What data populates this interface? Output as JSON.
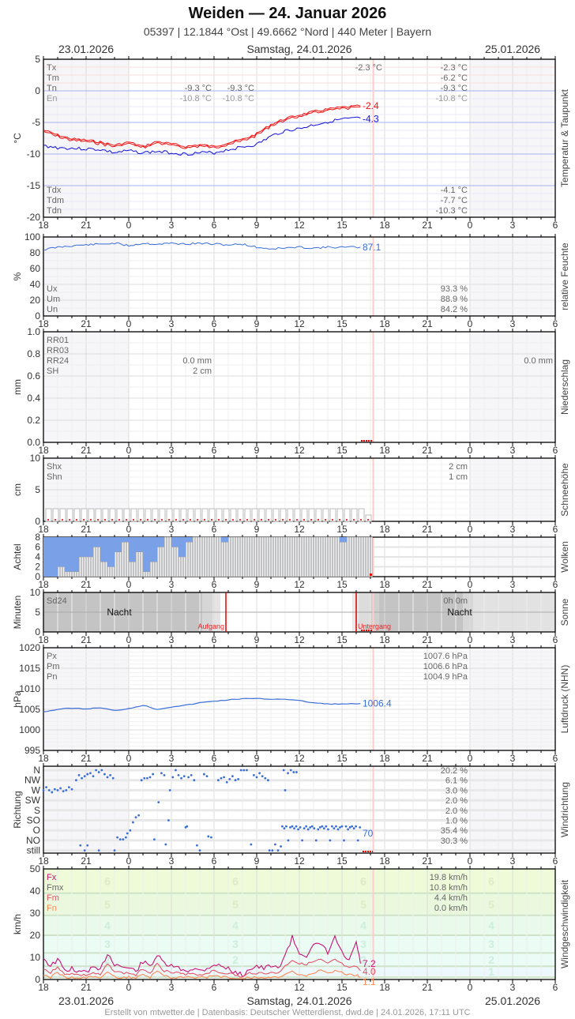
{
  "header": {
    "title": "Weiden  —  24. Januar 2026",
    "subtitle": "05397  |  12.1844 °Ost  |  49.6662 °Nord  |  440 Meter  |  Bayern",
    "date_left": "23.01.2026",
    "date_center": "Samstag, 24.01.2026",
    "date_right": "25.01.2026"
  },
  "footer": {
    "text": "Erstellt von mtwetter.de | Datenbasis: Deutscher Wetterdienst, dwd.de | 24.01.2026, 17:11 UTC"
  },
  "x_ticks": [
    "18",
    "21",
    "0",
    "3",
    "6",
    "9",
    "12",
    "15",
    "18",
    "21",
    "0",
    "3",
    "6"
  ],
  "colors": {
    "temp": "#ee1111",
    "dewpoint": "#1111dd",
    "humidity": "#3b6fd8",
    "pressure": "#3b6fd8",
    "cloud_fill": "#7aa0e8",
    "now_line": "#ffcccc",
    "fx": "#cc1177",
    "fm": "#e65566",
    "fn": "#ff8855"
  },
  "chart_data": [
    {
      "type": "line",
      "title": "Temperatur & Taupunkt",
      "ylabel": "°C",
      "ylim": [
        -20,
        5
      ],
      "yticks": [
        "5",
        "0",
        "-5",
        "-10",
        "-15",
        "-20"
      ],
      "legend_top": [
        {
          "key": "Tx",
          "day1": "",
          "day2": "-2.3 °C",
          "day3": "-2.3 °C"
        },
        {
          "key": "Tm",
          "day1": "",
          "day2": "",
          "day3": "-6.2 °C"
        },
        {
          "key": "Tn",
          "day1": "-9.3 °C",
          "day2": "-9.3 °C",
          "day3": "-9.3 °C"
        },
        {
          "key": "En",
          "day1": "-10.8 °C",
          "day2": "-10.8 °C",
          "day3": "-10.8 °C"
        }
      ],
      "legend_top_values": {
        "tx_mid": "-2.3 °C",
        "tn_a": "-9.3 °C",
        "tn_b": "-9.3 °C",
        "en_a": "-10.8 °C",
        "en_b": "-10.8 °C",
        "r_tx": "-2.3 °C",
        "r_tm": "-6.2 °C",
        "r_tn": "-9.3 °C",
        "r_en": "-10.8 °C"
      },
      "legend_bottom": {
        "tdx": "-4.1 °C",
        "tdm": "-7.7 °C",
        "tdn": "-10.3 °C"
      },
      "labels": {
        "tx": "Tx",
        "tm": "Tm",
        "tn": "Tn",
        "en": "En",
        "tdx": "Tdx",
        "tdm": "Tdm",
        "tdn": "Tdn"
      },
      "series": [
        {
          "name": "Temperatur",
          "last": "-2.4",
          "x": [
            18,
            19,
            20,
            21,
            22,
            23,
            0,
            1,
            2,
            3,
            4,
            5,
            6,
            7,
            8,
            9,
            10,
            11,
            12,
            13,
            14,
            15,
            16.3
          ],
          "values": [
            -6.2,
            -7.0,
            -7.6,
            -7.8,
            -8.1,
            -8.6,
            -8.1,
            -8.8,
            -8.0,
            -8.4,
            -8.8,
            -8.5,
            -8.8,
            -8.2,
            -7.7,
            -6.8,
            -5.3,
            -4.4,
            -3.8,
            -3.3,
            -2.9,
            -2.6,
            -2.4
          ]
        },
        {
          "name": "Taupunkt",
          "last": "-4.3",
          "x": [
            18,
            19,
            20,
            21,
            22,
            23,
            0,
            1,
            2,
            3,
            4,
            5,
            6,
            7,
            8,
            9,
            10,
            11,
            12,
            13,
            14,
            15,
            16.3
          ],
          "values": [
            -8.7,
            -9.0,
            -9.1,
            -9.2,
            -9.3,
            -9.8,
            -9.5,
            -9.8,
            -9.6,
            -9.8,
            -10.0,
            -9.8,
            -9.8,
            -9.3,
            -8.9,
            -8.5,
            -7.2,
            -6.3,
            -6.0,
            -5.4,
            -4.9,
            -4.5,
            -4.3
          ]
        }
      ]
    },
    {
      "type": "line",
      "title": "relative Feuchte",
      "ylabel": "%",
      "ylim": [
        0,
        100
      ],
      "yticks": [
        "100",
        "80",
        "60",
        "40",
        "20",
        "0"
      ],
      "legend": {
        "ux": "93.3 %",
        "um": "88.9 %",
        "un": "84.2 %"
      },
      "labels": {
        "ux": "Ux",
        "um": "Um",
        "un": "Un"
      },
      "series": [
        {
          "name": "rel. Feuchte",
          "last": "87.1",
          "x": [
            18,
            19,
            20,
            21,
            22,
            23,
            0,
            1,
            2,
            3,
            4,
            5,
            6,
            7,
            8,
            9,
            10,
            11,
            12,
            13,
            14,
            15,
            16.3
          ],
          "values": [
            84,
            87,
            89,
            90,
            91,
            92,
            89,
            92,
            91,
            92,
            91,
            92,
            91,
            90,
            91,
            87,
            85,
            86,
            87,
            86,
            87,
            87,
            87.1
          ]
        }
      ]
    },
    {
      "type": "bar",
      "title": "Niederschlag",
      "ylabel": "mm",
      "ylim": [
        0,
        1.0
      ],
      "yticks": [
        "1.0",
        "0.8",
        "0.6",
        "0.4",
        "0.2",
        "0.0"
      ],
      "labels": {
        "rr01": "RR01",
        "rr03": "RR03",
        "rr24": "RR24",
        "sh": "SH"
      },
      "legend": {
        "rr24_day2": "0.0 mm",
        "sh_day2": "2 cm",
        "rr24_day3": "0.0 mm"
      },
      "values": []
    },
    {
      "type": "bar",
      "title": "Schneehöhe",
      "ylabel": "cm",
      "ylim": [
        0,
        10
      ],
      "yticks": [
        "10",
        "5",
        "0"
      ],
      "labels": {
        "shx": "Shx",
        "shn": "Shn"
      },
      "legend": {
        "shx": "2 cm",
        "shn": "1 cm"
      },
      "values_note": "2 cm hourly until ~16:30, then 1 cm"
    },
    {
      "type": "bar",
      "title": "Wolken",
      "ylabel": "Achtel",
      "ylim": [
        0,
        8
      ],
      "yticks": [
        "8",
        "6",
        "4",
        "2",
        "0"
      ],
      "x": [
        18,
        18.5,
        19,
        19.5,
        20,
        20.5,
        21,
        21.5,
        22,
        22.5,
        23,
        23.5,
        0,
        0.5,
        1,
        1.5,
        2,
        2.5,
        3,
        3.5,
        4,
        4.5,
        5,
        5.5,
        6,
        6.5,
        7,
        7.5,
        8
      ],
      "values": [
        0,
        0,
        2,
        1,
        1,
        4,
        4,
        6,
        3,
        2,
        5,
        7,
        3,
        5,
        1,
        3,
        6,
        8,
        6,
        4,
        7,
        8,
        8,
        8,
        8,
        7,
        8,
        8,
        8
      ]
    },
    {
      "type": "bar",
      "title": "Sonne",
      "ylabel": "Minuten",
      "ylim": [
        0,
        10
      ],
      "yticks": [
        "10",
        "5",
        "0"
      ],
      "labels": {
        "sd24": "Sd24",
        "night": "Nacht",
        "sunrise": "Aufgang",
        "sunset": "Untergang"
      },
      "legend": {
        "sd24": "0h 0m"
      },
      "sunrise_hour": 7.3,
      "sunset_hour": 16.6
    },
    {
      "type": "line",
      "title": "Luftdruck (NHN)",
      "ylabel": "hPa",
      "ylim": [
        995,
        1020
      ],
      "yticks": [
        "1020",
        "1015",
        "1010",
        "1005",
        "1000",
        "995"
      ],
      "labels": {
        "px": "Px",
        "pm": "Pm",
        "pn": "Pn"
      },
      "legend": {
        "px": "1007.6 hPa",
        "pm": "1006.6 hPa",
        "pn": "1004.9 hPa"
      },
      "series": [
        {
          "name": "Luftdruck",
          "last": "1006.4",
          "x": [
            18,
            19,
            20,
            21,
            22,
            23,
            0,
            1,
            2,
            3,
            4,
            5,
            6,
            7,
            8,
            9,
            10,
            11,
            12,
            13,
            14,
            15,
            16.3
          ],
          "values": [
            1004.4,
            1005.0,
            1005.3,
            1005.1,
            1005.4,
            1004.7,
            1005.2,
            1006.0,
            1005.0,
            1005.6,
            1006.0,
            1006.6,
            1007.0,
            1007.3,
            1007.6,
            1007.6,
            1007.5,
            1007.5,
            1007.1,
            1006.6,
            1006.3,
            1006.3,
            1006.4
          ]
        }
      ]
    },
    {
      "type": "scatter",
      "title": "Windrichtung",
      "ylabel": "Richtung",
      "categories": [
        "N",
        "NW",
        "W",
        "SW",
        "S",
        "SO",
        "O",
        "NO",
        "still"
      ],
      "legend": [
        "20.2 %",
        "6.1 %",
        "3.0 %",
        "2.0 %",
        "2.0 %",
        "1.0 %",
        "35.4 %",
        "30.3 %"
      ],
      "last": "70"
    },
    {
      "type": "line",
      "title": "Windgeschwindigkeit",
      "ylabel": "km/h",
      "ylim": [
        0,
        50
      ],
      "yticks": [
        "50",
        "40",
        "30",
        "20",
        "10",
        "0"
      ],
      "labels": {
        "fx": "Fx",
        "fmx": "Fmx",
        "fm": "Fm",
        "fn": "Fn"
      },
      "legend": {
        "fx": "19.8 km/h",
        "fmx": "10.8 km/h",
        "fm": "4.4 km/h",
        "fn": "0.0 km/h"
      },
      "beaufort": [
        "6",
        "5",
        "4",
        "3",
        "2",
        "1"
      ],
      "series": [
        {
          "name": "Fx",
          "last": "7.2",
          "x": [
            18,
            18.5,
            19,
            19.5,
            20,
            20.5,
            21,
            21.5,
            22,
            22.5,
            23,
            23.5,
            0,
            0.5,
            1,
            1.5,
            2,
            2.5,
            3,
            3.5,
            4,
            4.5,
            5,
            5.5,
            6,
            6.5,
            7,
            7.5,
            8,
            8.5,
            9,
            9.5,
            10,
            10.5,
            11,
            11.5,
            12,
            12.5,
            13,
            13.5,
            14,
            14.5,
            15,
            15.5,
            16,
            16.3
          ],
          "values": [
            10,
            6,
            9,
            4,
            5,
            3,
            4,
            5,
            4,
            12,
            7,
            6,
            5,
            4,
            8,
            6,
            11,
            7,
            6,
            5,
            4,
            5,
            4,
            5,
            7,
            6,
            5,
            3,
            2,
            5,
            6,
            5,
            6,
            5,
            11,
            19,
            12,
            11,
            15,
            16,
            12,
            19,
            12,
            8,
            17,
            7.2
          ]
        },
        {
          "name": "Fm",
          "last": "4.0",
          "x": [
            18,
            18.5,
            19,
            19.5,
            20,
            20.5,
            21,
            21.5,
            22,
            22.5,
            23,
            23.5,
            0,
            0.5,
            1,
            1.5,
            2,
            2.5,
            3,
            3.5,
            4,
            4.5,
            5,
            5.5,
            6,
            6.5,
            7,
            7.5,
            8,
            8.5,
            9,
            9.5,
            10,
            10.5,
            11,
            11.5,
            12,
            12.5,
            13,
            13.5,
            14,
            14.5,
            15,
            15.5,
            16,
            16.3
          ],
          "values": [
            5,
            3,
            6,
            2,
            3,
            2,
            2,
            3,
            2,
            7,
            4,
            3,
            3,
            2,
            5,
            3,
            7,
            4,
            3,
            3,
            2,
            3,
            2,
            3,
            4,
            3,
            3,
            2,
            1,
            3,
            3,
            3,
            3,
            3,
            6,
            9,
            7,
            7,
            8,
            9,
            7,
            9,
            7,
            5,
            6,
            4.0
          ]
        },
        {
          "name": "Fn",
          "last": "1.1",
          "x": [
            18,
            18.5,
            19,
            19.5,
            20,
            20.5,
            21,
            21.5,
            22,
            22.5,
            23,
            23.5,
            0,
            0.5,
            1,
            1.5,
            2,
            2.5,
            3,
            3.5,
            4,
            4.5,
            5,
            5.5,
            6,
            6.5,
            7,
            7.5,
            8,
            8.5,
            9,
            9.5,
            10,
            10.5,
            11,
            11.5,
            12,
            12.5,
            13,
            13.5,
            14,
            14.5,
            15,
            15.5,
            16,
            16.3
          ],
          "values": [
            2,
            1,
            3,
            1,
            1,
            0,
            1,
            1,
            1,
            3,
            1,
            1,
            1,
            1,
            2,
            1,
            4,
            2,
            1,
            1,
            1,
            1,
            1,
            1,
            2,
            1,
            1,
            0,
            0,
            1,
            1,
            1,
            1,
            1,
            2,
            4,
            2,
            2,
            3,
            4,
            3,
            4,
            3,
            2,
            2,
            1.1
          ]
        }
      ]
    }
  ]
}
